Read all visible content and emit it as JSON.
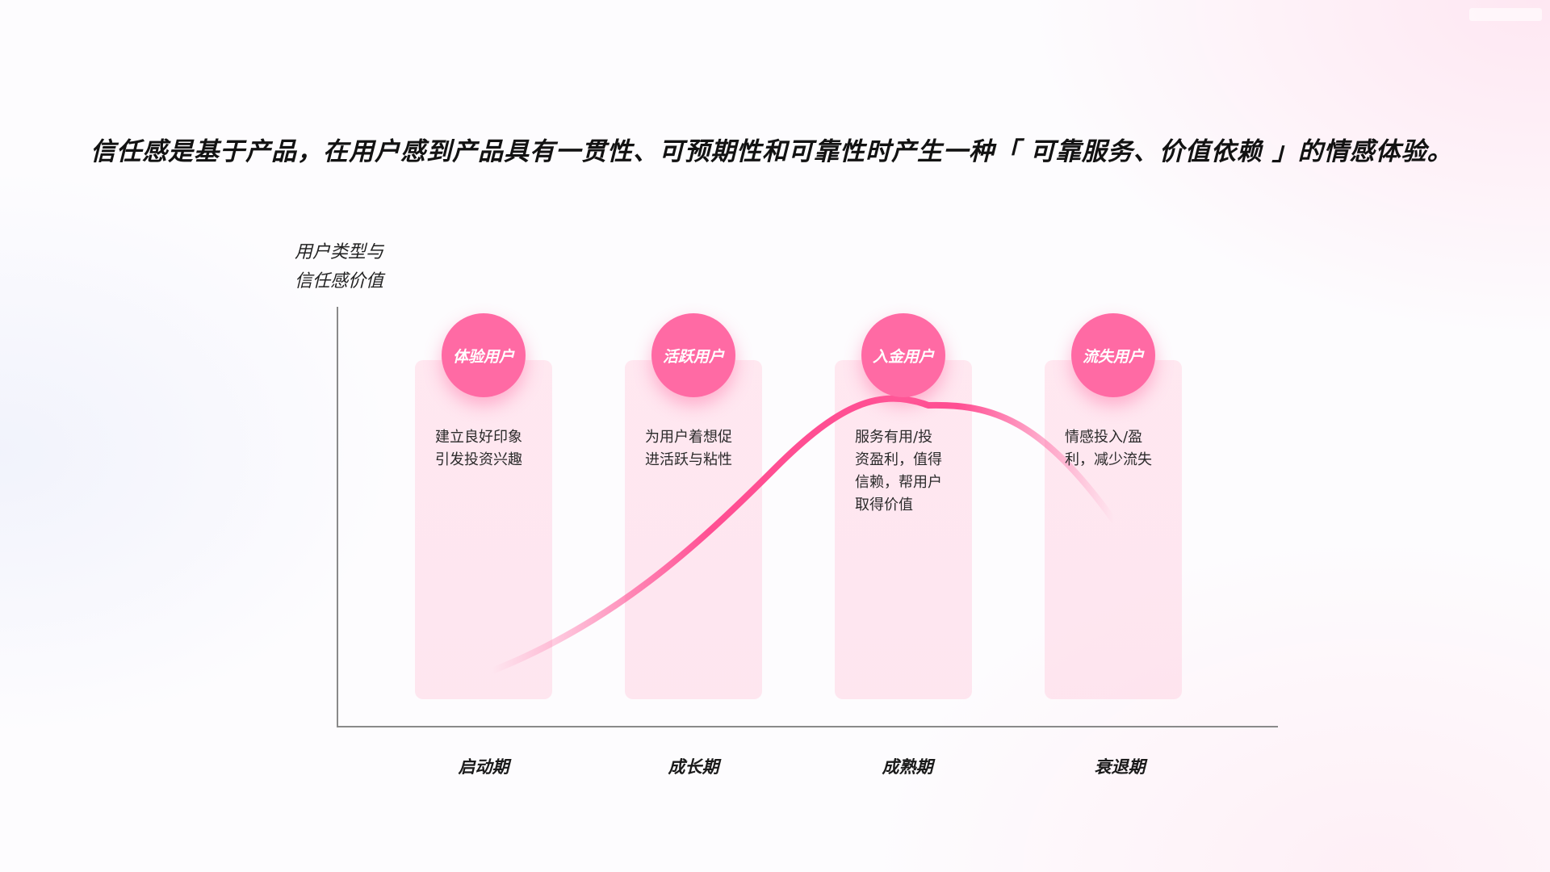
{
  "headline": "信任感是基于产品，在用户感到产品具有一贯性、可预期性和可靠性时产生一种「 可靠服务、价值依赖 」的情感体验。",
  "y_axis_label": [
    "用户类型与",
    "信任感价值"
  ],
  "user_types": [
    {
      "label": "体验用户",
      "desc": [
        "建立良好印象",
        "引发投资兴趣"
      ]
    },
    {
      "label": "活跃用户",
      "desc": [
        "为用户着想促",
        "进活跃与粘性"
      ]
    },
    {
      "label": "入金用户",
      "desc": [
        "服务有用/投",
        "资盈利，值得",
        "信赖，帮用户",
        "取得价值"
      ]
    },
    {
      "label": "流失用户",
      "desc": [
        "情感投入/盈",
        "利，减少流失"
      ]
    }
  ],
  "stages": [
    "启动期",
    "成长期",
    "成熟期",
    "衰退期"
  ],
  "colors": {
    "accent": "#ff6aa4",
    "curve": "#ff4f93",
    "column": "#ffe4ee",
    "axis": "#8a8a8a",
    "text": "#121212"
  }
}
